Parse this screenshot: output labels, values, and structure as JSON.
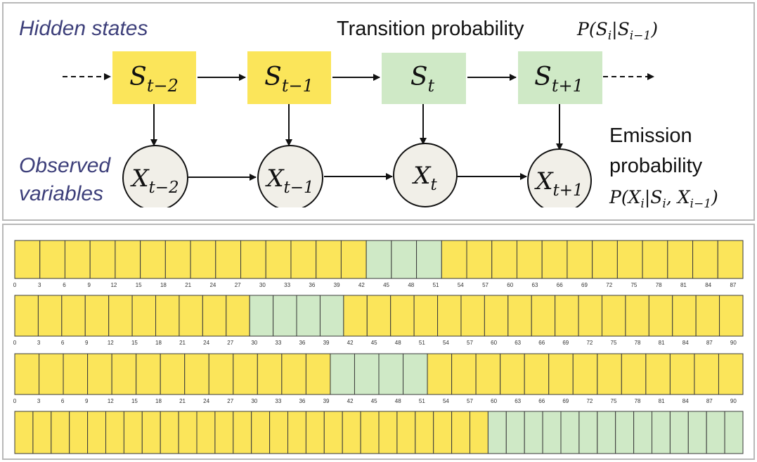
{
  "top": {
    "hidden_label": "Hidden states",
    "observed_label_line1": "Observed",
    "observed_label_line2": "variables",
    "transition_label": "Transition probability",
    "transition_formula": "P(S_i|S_{i−1})",
    "emission_line1": "Emission",
    "emission_line2": "probability",
    "emission_formula": "P(X_i|S_i, X_{i−1})",
    "states": [
      {
        "base": "S",
        "sub": "t−2",
        "type": "yellow"
      },
      {
        "base": "S",
        "sub": "t−1",
        "type": "yellow"
      },
      {
        "base": "S",
        "sub": "t",
        "type": "green"
      },
      {
        "base": "S",
        "sub": "t+1",
        "type": "green"
      }
    ],
    "observations": [
      {
        "base": "X",
        "sub": "t−2"
      },
      {
        "base": "X",
        "sub": "t−1"
      },
      {
        "base": "X",
        "sub": "t"
      },
      {
        "base": "X",
        "sub": "t+1"
      }
    ]
  },
  "colors": {
    "yellow": "#fbe55a",
    "green": "#cfe9c6",
    "node_fill": "#f1efe8"
  },
  "tracks": [
    {
      "ticks": [
        "0",
        "3",
        "6",
        "9",
        "12",
        "15",
        "18",
        "21",
        "24",
        "27",
        "30",
        "33",
        "36",
        "39",
        "42",
        "45",
        "48",
        "51",
        "54",
        "57",
        "60",
        "63",
        "66",
        "69",
        "72",
        "75",
        "78",
        "81",
        "84",
        "87"
      ],
      "segments": [
        {
          "state": "yellow",
          "cells": 14
        },
        {
          "state": "green",
          "cells": 3
        },
        {
          "state": "yellow",
          "cells": 12
        }
      ]
    },
    {
      "ticks": [
        "0",
        "3",
        "6",
        "9",
        "12",
        "15",
        "18",
        "21",
        "24",
        "27",
        "30",
        "33",
        "36",
        "39",
        "42",
        "45",
        "48",
        "51",
        "54",
        "57",
        "60",
        "63",
        "66",
        "69",
        "72",
        "75",
        "78",
        "81",
        "84",
        "87",
        "90"
      ],
      "segments": [
        {
          "state": "yellow",
          "cells": 10
        },
        {
          "state": "green",
          "cells": 4
        },
        {
          "state": "yellow",
          "cells": 17
        }
      ]
    },
    {
      "ticks": [
        "0",
        "3",
        "6",
        "9",
        "12",
        "15",
        "18",
        "21",
        "24",
        "27",
        "30",
        "33",
        "36",
        "39",
        "42",
        "45",
        "48",
        "51",
        "54",
        "57",
        "60",
        "63",
        "66",
        "69",
        "72",
        "75",
        "78",
        "81",
        "84",
        "87",
        "90"
      ],
      "segments": [
        {
          "state": "yellow",
          "cells": 13
        },
        {
          "state": "green",
          "cells": 4
        },
        {
          "state": "yellow",
          "cells": 13
        }
      ]
    },
    {
      "ticks": [],
      "segments": [
        {
          "state": "yellow",
          "cells": 26
        },
        {
          "state": "green",
          "cells": 14
        }
      ]
    }
  ]
}
